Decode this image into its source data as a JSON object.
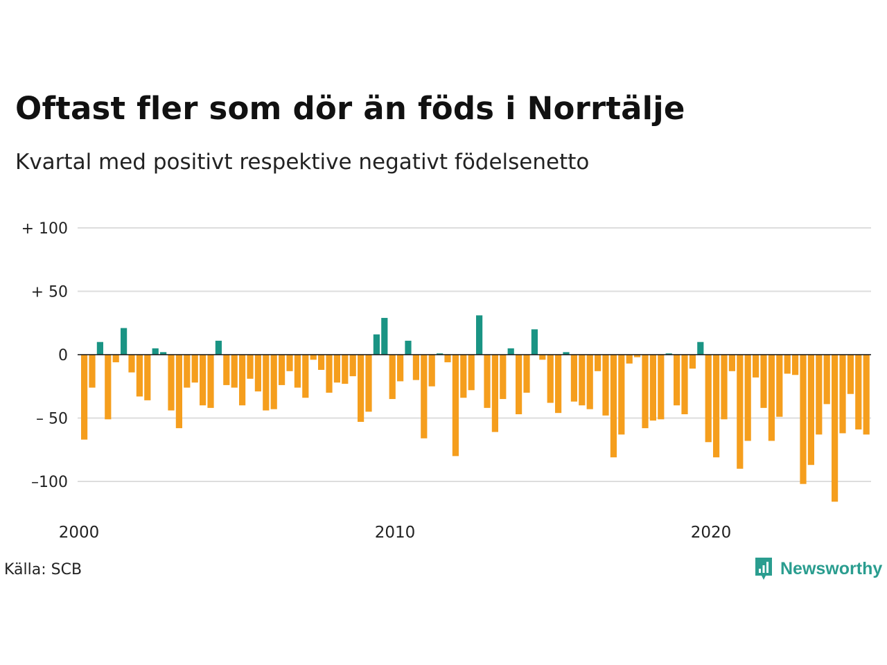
{
  "title": "Oftast fler som dör än föds i Norrtälje",
  "subtitle": "Kvartal med positivt respektive negativt födelsenetto",
  "source": "Källa: SCB",
  "brand": "Newsworthy",
  "colors": {
    "positive": "#1a9484",
    "negative": "#f59e1d",
    "grid": "#dddddd",
    "zero": "#111111",
    "brand": "#2a9d8f"
  },
  "chart_data": {
    "type": "bar",
    "y_tick_values": [
      100,
      50,
      0,
      -50,
      -100
    ],
    "y_tick_labels": [
      "+ 100",
      "+  50",
      "0",
      "– 50",
      "–100"
    ],
    "ylim": [
      -120,
      100
    ],
    "x_tick_labels": [
      "2000",
      "2010",
      "2020"
    ],
    "x_tick_index": [
      0,
      40,
      80
    ],
    "grid": true,
    "values": [
      -67,
      -26,
      10,
      -51,
      -6,
      21,
      -14,
      -33,
      -36,
      5,
      2,
      -44,
      -58,
      -26,
      -22,
      -40,
      -42,
      11,
      -24,
      -26,
      -40,
      -19,
      -29,
      -44,
      -43,
      -24,
      -13,
      -26,
      -34,
      -4,
      -12,
      -30,
      -22,
      -23,
      -17,
      -53,
      -45,
      16,
      29,
      -35,
      -21,
      11,
      -20,
      -66,
      -25,
      1,
      -6,
      -80,
      -34,
      -28,
      31,
      -42,
      -61,
      -35,
      5,
      -47,
      -30,
      20,
      -4,
      -38,
      -46,
      2,
      -37,
      -40,
      -43,
      -13,
      -48,
      -81,
      -63,
      -7,
      -2,
      -58,
      -52,
      -51,
      1,
      -40,
      -47,
      -11,
      10,
      -69,
      -81,
      -51,
      -13,
      -90,
      -68,
      -18,
      -42,
      -68,
      -49,
      -15,
      -16,
      -102,
      -87,
      -63,
      -39,
      -116,
      -62,
      -31,
      -59,
      -63
    ]
  }
}
